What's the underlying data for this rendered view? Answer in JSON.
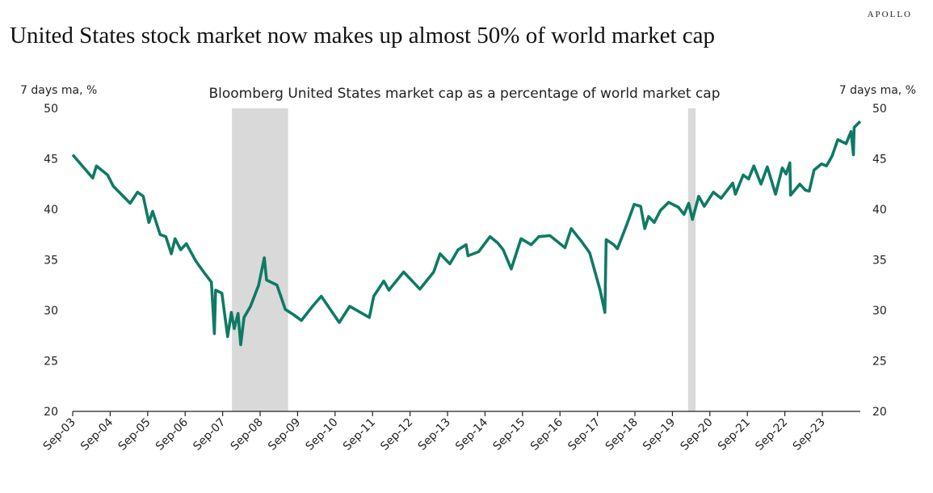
{
  "header": {
    "title": "United States stock market now makes up almost 50% of world  market cap",
    "logo": "APOLLO"
  },
  "chart_data": {
    "type": "line",
    "title": "Bloomberg United States market cap as a percentage of world market cap",
    "ylabel_left": "7 days ma, %",
    "ylabel_right": "7 days ma, %",
    "ylim": [
      20,
      50
    ],
    "yticks": [
      20,
      25,
      30,
      35,
      40,
      45,
      50
    ],
    "xticks": [
      "Sep-03",
      "Sep-04",
      "Sep-05",
      "Sep-06",
      "Sep-07",
      "Sep-08",
      "Sep-09",
      "Sep-10",
      "Sep-11",
      "Sep-12",
      "Sep-13",
      "Sep-14",
      "Sep-15",
      "Sep-16",
      "Sep-17",
      "Sep-18",
      "Sep-19",
      "Sep-20",
      "Sep-21",
      "Sep-22",
      "Sep-23"
    ],
    "grid": false,
    "line_color": "#0f7a64",
    "shade_color": "#d9d9d9",
    "recession_shading": [
      [
        "2007-12-01",
        "2009-06-01"
      ],
      [
        "2020-02-01",
        "2020-04-15"
      ]
    ],
    "series": [
      {
        "points": [
          [
            "2003-09-01",
            45.4
          ],
          [
            "2004-03-15",
            43.1
          ],
          [
            "2004-04-20",
            44.3
          ],
          [
            "2004-08-07",
            43.4
          ],
          [
            "2004-10-01",
            42.3
          ],
          [
            "2005-03-15",
            40.6
          ],
          [
            "2005-05-26",
            41.7
          ],
          [
            "2005-07-20",
            41.3
          ],
          [
            "2005-09-13",
            38.7
          ],
          [
            "2005-10-20",
            39.8
          ],
          [
            "2006-01-01",
            37.5
          ],
          [
            "2006-02-25",
            37.3
          ],
          [
            "2006-04-20",
            35.6
          ],
          [
            "2006-05-26",
            37.1
          ],
          [
            "2006-07-20",
            36.0
          ],
          [
            "2006-09-13",
            36.6
          ],
          [
            "2006-12-13",
            34.9
          ],
          [
            "2007-03-15",
            33.6
          ],
          [
            "2007-05-15",
            32.8
          ],
          [
            "2007-06-13",
            27.7
          ],
          [
            "2007-06-25",
            32.0
          ],
          [
            "2007-08-25",
            31.7
          ],
          [
            "2007-10-20",
            27.4
          ],
          [
            "2007-11-25",
            29.8
          ],
          [
            "2007-12-24",
            28.2
          ],
          [
            "2008-01-30",
            29.7
          ],
          [
            "2008-02-25",
            26.6
          ],
          [
            "2008-03-28",
            29.3
          ],
          [
            "2008-05-30",
            30.4
          ],
          [
            "2008-08-18",
            32.5
          ],
          [
            "2008-10-12",
            35.2
          ],
          [
            "2008-11-03",
            33.0
          ],
          [
            "2009-02-13",
            32.5
          ],
          [
            "2009-05-05",
            30.1
          ],
          [
            "2009-07-20",
            29.6
          ],
          [
            "2009-10-08",
            29.0
          ],
          [
            "2010-01-25",
            30.4
          ],
          [
            "2010-04-20",
            31.4
          ],
          [
            "2010-10-12",
            28.8
          ],
          [
            "2011-01-22",
            30.4
          ],
          [
            "2011-08-01",
            29.3
          ],
          [
            "2011-09-13",
            31.4
          ],
          [
            "2011-12-20",
            32.9
          ],
          [
            "2012-02-07",
            32.0
          ],
          [
            "2012-07-01",
            33.8
          ],
          [
            "2012-12-06",
            32.1
          ],
          [
            "2013-04-20",
            33.8
          ],
          [
            "2013-06-21",
            35.6
          ],
          [
            "2013-09-24",
            34.6
          ],
          [
            "2013-12-13",
            36.0
          ],
          [
            "2014-03-01",
            36.5
          ],
          [
            "2014-03-20",
            35.4
          ],
          [
            "2014-07-01",
            35.8
          ],
          [
            "2014-10-20",
            37.3
          ],
          [
            "2015-01-01",
            36.7
          ],
          [
            "2015-02-25",
            36.0
          ],
          [
            "2015-05-15",
            34.1
          ],
          [
            "2015-08-18",
            37.1
          ],
          [
            "2015-11-25",
            36.5
          ],
          [
            "2016-02-07",
            37.3
          ],
          [
            "2016-05-26",
            37.4
          ],
          [
            "2016-10-20",
            36.2
          ],
          [
            "2016-12-20",
            38.1
          ],
          [
            "2017-04-01",
            36.8
          ],
          [
            "2017-06-18",
            35.7
          ],
          [
            "2017-09-27",
            32.0
          ],
          [
            "2017-11-13",
            29.8
          ],
          [
            "2017-11-25",
            37.0
          ],
          [
            "2018-02-07",
            36.5
          ],
          [
            "2018-03-15",
            36.1
          ],
          [
            "2018-06-07",
            38.3
          ],
          [
            "2018-08-25",
            40.5
          ],
          [
            "2018-10-27",
            40.3
          ],
          [
            "2018-12-06",
            38.1
          ],
          [
            "2019-01-12",
            39.3
          ],
          [
            "2019-03-08",
            38.7
          ],
          [
            "2019-05-08",
            39.9
          ],
          [
            "2019-07-27",
            40.7
          ],
          [
            "2019-10-30",
            40.2
          ],
          [
            "2019-12-24",
            39.5
          ],
          [
            "2020-02-07",
            40.6
          ],
          [
            "2020-03-15",
            39.0
          ],
          [
            "2020-05-15",
            41.3
          ],
          [
            "2020-07-08",
            40.3
          ],
          [
            "2020-10-05",
            41.7
          ],
          [
            "2020-12-20",
            41.1
          ],
          [
            "2021-04-12",
            42.6
          ],
          [
            "2021-05-08",
            41.5
          ],
          [
            "2021-07-23",
            43.4
          ],
          [
            "2021-09-13",
            43.0
          ],
          [
            "2021-11-03",
            44.3
          ],
          [
            "2022-01-12",
            42.5
          ],
          [
            "2022-03-15",
            44.2
          ],
          [
            "2022-06-03",
            41.5
          ],
          [
            "2022-08-07",
            44.1
          ],
          [
            "2022-09-13",
            43.5
          ],
          [
            "2022-10-20",
            44.6
          ],
          [
            "2022-10-27",
            41.4
          ],
          [
            "2023-01-25",
            42.5
          ],
          [
            "2023-03-20",
            41.9
          ],
          [
            "2023-04-27",
            41.8
          ],
          [
            "2023-06-13",
            43.9
          ],
          [
            "2023-08-25",
            44.5
          ],
          [
            "2023-10-12",
            44.3
          ],
          [
            "2023-12-06",
            45.3
          ],
          [
            "2024-01-30",
            46.9
          ],
          [
            "2024-04-20",
            46.5
          ],
          [
            "2024-06-07",
            47.7
          ],
          [
            "2024-07-01",
            45.4
          ],
          [
            "2024-07-08",
            48.1
          ],
          [
            "2024-09-05",
            48.7
          ]
        ]
      }
    ]
  }
}
